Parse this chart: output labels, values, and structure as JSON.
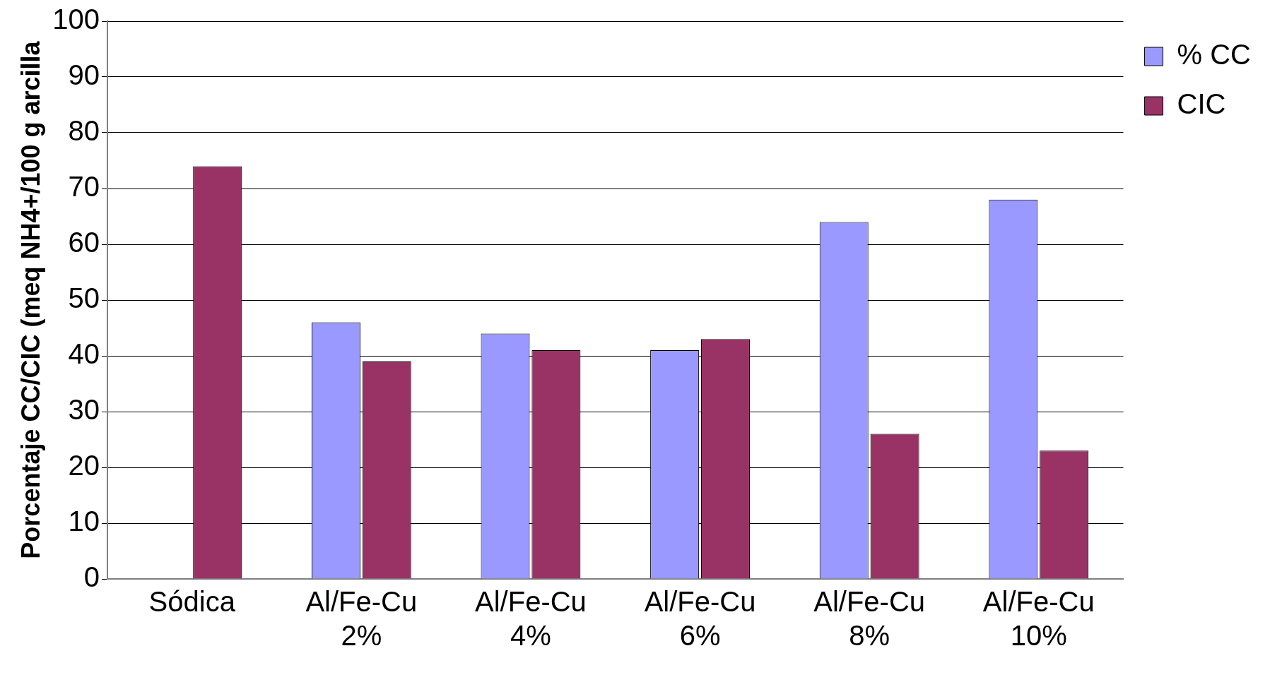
{
  "chart_data": {
    "type": "bar",
    "ylabel": "Porcentaje CC/CIC (meq NH4+/100 g arcilla",
    "categories": [
      "Sódica",
      "Al/Fe-Cu 2%",
      "Al/Fe-Cu 4%",
      "Al/Fe-Cu 6%",
      "Al/Fe-Cu 8%",
      "Al/Fe-Cu 10%"
    ],
    "series": [
      {
        "name": "% CC",
        "color": "#9999ff",
        "values": [
          null,
          46,
          44,
          41,
          64,
          68
        ]
      },
      {
        "name": "CIC",
        "color": "#993366",
        "values": [
          74,
          39,
          41,
          43,
          26,
          23
        ]
      }
    ],
    "ylim": [
      0,
      100
    ],
    "yticks": [
      0,
      10,
      20,
      30,
      40,
      50,
      60,
      70,
      80,
      90,
      100
    ],
    "grid": "y",
    "legend": "right"
  }
}
